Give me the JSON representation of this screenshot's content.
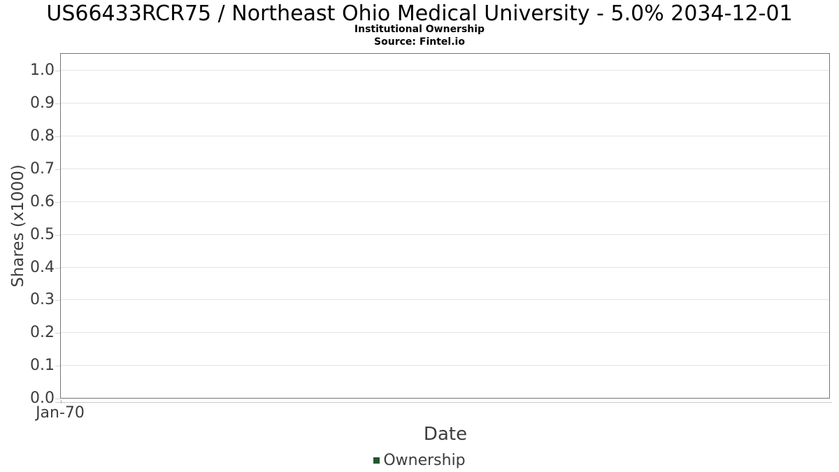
{
  "header": {
    "title": "US66433RCR75 / Northeast Ohio Medical University - 5.0% 2034-12-01",
    "subtitle": "Institutional Ownership",
    "source": "Source: Fintel.io"
  },
  "chart_data": {
    "type": "bar",
    "title": "US66433RCR75 / Northeast Ohio Medical University - 5.0% 2034-12-01",
    "subtitle": "Institutional Ownership",
    "source_note": "Source: Fintel.io",
    "xlabel": "Date",
    "ylabel": "Shares (x1000)",
    "x_ticks": [
      "Jan-70"
    ],
    "y_ticks": [
      0.0,
      0.1,
      0.2,
      0.3,
      0.4,
      0.5,
      0.6,
      0.7,
      0.8,
      0.9,
      1.0
    ],
    "ylim": [
      0,
      1.05
    ],
    "grid": true,
    "legend_position": "bottom-center",
    "series": [
      {
        "name": "Ownership",
        "color": "#26552e",
        "x": [],
        "values": []
      }
    ]
  },
  "colors": {
    "axis_text": "#3d3d3d",
    "grid_line": "#e4e4e4",
    "plot_border": "#757575",
    "legend_marker": "#26552e"
  }
}
